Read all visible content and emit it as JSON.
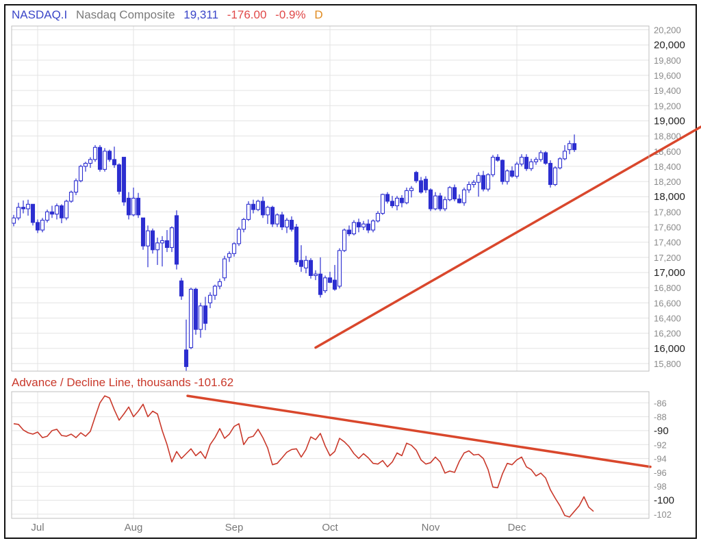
{
  "header": {
    "symbol": "NASDAQ.I",
    "name": "Nasdaq Composite",
    "price": "19,311",
    "change": "-176.00",
    "change_pct": "-0.9%",
    "period": "D"
  },
  "colors": {
    "symbol": "#3a45c8",
    "name": "#7a7a7a",
    "price": "#3a45c8",
    "down": "#e04848",
    "period": "#e08a1e",
    "candle": "#2c2ed0",
    "ad_line": "#c9382a",
    "trendline": "#d9472c",
    "ad_title": "#c9382a"
  },
  "chart_data": [
    {
      "type": "candlestick",
      "title": "NASDAQ.I Nasdaq Composite",
      "ylim": [
        15700,
        20250
      ],
      "yticks": [
        15800,
        16000,
        16200,
        16400,
        16600,
        16800,
        17000,
        17200,
        17400,
        17600,
        17800,
        18000,
        18200,
        18400,
        18600,
        18800,
        19000,
        19200,
        19400,
        19600,
        19800,
        20000,
        20200
      ],
      "ytick_labels": [
        "15,800",
        "16,000",
        "16,200",
        "16,400",
        "16,600",
        "16,800",
        "17,000",
        "17,200",
        "17,400",
        "17,600",
        "17,800",
        "18,000",
        "18,200",
        "18,400",
        "18,600",
        "18,800",
        "19,000",
        "19,200",
        "19,400",
        "19,600",
        "19,800",
        "20,000",
        "20,200"
      ],
      "ytick_major": [
        16000,
        17000,
        18000,
        19000,
        20000
      ],
      "months": [
        "Jul",
        "Aug",
        "Sep",
        "Oct",
        "Nov",
        "Dec"
      ],
      "month_start_index": [
        5,
        25,
        46,
        66,
        87,
        105
      ],
      "candles": [
        {
          "o": 17650,
          "h": 17760,
          "l": 17610,
          "c": 17720
        },
        {
          "o": 17720,
          "h": 17920,
          "l": 17690,
          "c": 17860
        },
        {
          "o": 17860,
          "h": 17950,
          "l": 17780,
          "c": 17840
        },
        {
          "o": 17840,
          "h": 17960,
          "l": 17750,
          "c": 17900
        },
        {
          "o": 17900,
          "h": 17900,
          "l": 17620,
          "c": 17660
        },
        {
          "o": 17660,
          "h": 17700,
          "l": 17520,
          "c": 17560
        },
        {
          "o": 17560,
          "h": 17720,
          "l": 17530,
          "c": 17690
        },
        {
          "o": 17690,
          "h": 17830,
          "l": 17660,
          "c": 17800
        },
        {
          "o": 17800,
          "h": 17880,
          "l": 17720,
          "c": 17770
        },
        {
          "o": 17770,
          "h": 17910,
          "l": 17700,
          "c": 17880
        },
        {
          "o": 17880,
          "h": 17900,
          "l": 17650,
          "c": 17720
        },
        {
          "o": 17720,
          "h": 17960,
          "l": 17690,
          "c": 17940
        },
        {
          "o": 17940,
          "h": 18080,
          "l": 17920,
          "c": 18060
        },
        {
          "o": 18060,
          "h": 18240,
          "l": 18020,
          "c": 18210
        },
        {
          "o": 18210,
          "h": 18420,
          "l": 18190,
          "c": 18400
        },
        {
          "o": 18400,
          "h": 18460,
          "l": 18330,
          "c": 18440
        },
        {
          "o": 18440,
          "h": 18520,
          "l": 18380,
          "c": 18490
        },
        {
          "o": 18490,
          "h": 18680,
          "l": 18460,
          "c": 18650
        },
        {
          "o": 18650,
          "h": 18680,
          "l": 18330,
          "c": 18360
        },
        {
          "o": 18360,
          "h": 18640,
          "l": 18330,
          "c": 18600
        },
        {
          "o": 18600,
          "h": 18620,
          "l": 18460,
          "c": 18490
        },
        {
          "o": 18490,
          "h": 18660,
          "l": 18380,
          "c": 18420
        },
        {
          "o": 18420,
          "h": 18440,
          "l": 18030,
          "c": 18070
        },
        {
          "o": 18520,
          "h": 18520,
          "l": 17880,
          "c": 17930
        },
        {
          "o": 17980,
          "h": 18060,
          "l": 17700,
          "c": 17760
        },
        {
          "o": 17760,
          "h": 18120,
          "l": 17740,
          "c": 17980
        },
        {
          "o": 17980,
          "h": 18050,
          "l": 17720,
          "c": 17760
        },
        {
          "o": 17720,
          "h": 17720,
          "l": 17300,
          "c": 17350
        },
        {
          "o": 17350,
          "h": 17620,
          "l": 17070,
          "c": 17550
        },
        {
          "o": 17550,
          "h": 17580,
          "l": 17250,
          "c": 17300
        },
        {
          "o": 17300,
          "h": 17460,
          "l": 17100,
          "c": 17390
        },
        {
          "o": 17390,
          "h": 17480,
          "l": 17080,
          "c": 17420
        },
        {
          "o": 17420,
          "h": 17560,
          "l": 17270,
          "c": 17330
        },
        {
          "o": 17330,
          "h": 17610,
          "l": 17270,
          "c": 17590
        },
        {
          "o": 17750,
          "h": 17820,
          "l": 17040,
          "c": 17110
        },
        {
          "o": 16890,
          "h": 16930,
          "l": 16640,
          "c": 16690
        },
        {
          "o": 15980,
          "h": 16380,
          "l": 15700,
          "c": 15760
        },
        {
          "o": 16010,
          "h": 16800,
          "l": 15990,
          "c": 16780
        },
        {
          "o": 16780,
          "h": 16800,
          "l": 16180,
          "c": 16250
        },
        {
          "o": 16250,
          "h": 16600,
          "l": 16140,
          "c": 16560
        },
        {
          "o": 16560,
          "h": 16680,
          "l": 16240,
          "c": 16330
        },
        {
          "o": 16600,
          "h": 16740,
          "l": 16530,
          "c": 16700
        },
        {
          "o": 16700,
          "h": 16840,
          "l": 16640,
          "c": 16820
        },
        {
          "o": 16820,
          "h": 16920,
          "l": 16780,
          "c": 16880
        },
        {
          "o": 16930,
          "h": 17220,
          "l": 16890,
          "c": 17180
        },
        {
          "o": 17200,
          "h": 17280,
          "l": 17140,
          "c": 17250
        },
        {
          "o": 17250,
          "h": 17400,
          "l": 17210,
          "c": 17380
        },
        {
          "o": 17380,
          "h": 17600,
          "l": 17350,
          "c": 17570
        },
        {
          "o": 17570,
          "h": 17720,
          "l": 17530,
          "c": 17700
        },
        {
          "o": 17700,
          "h": 17940,
          "l": 17680,
          "c": 17900
        },
        {
          "o": 17900,
          "h": 17960,
          "l": 17780,
          "c": 17830
        },
        {
          "o": 17830,
          "h": 17960,
          "l": 17810,
          "c": 17940
        },
        {
          "o": 17940,
          "h": 18000,
          "l": 17720,
          "c": 17760
        },
        {
          "o": 17760,
          "h": 17880,
          "l": 17640,
          "c": 17860
        },
        {
          "o": 17860,
          "h": 17880,
          "l": 17600,
          "c": 17640
        },
        {
          "o": 17640,
          "h": 17780,
          "l": 17600,
          "c": 17760
        },
        {
          "o": 17760,
          "h": 17800,
          "l": 17560,
          "c": 17600
        },
        {
          "o": 17600,
          "h": 17720,
          "l": 17520,
          "c": 17690
        },
        {
          "o": 17690,
          "h": 17740,
          "l": 17540,
          "c": 17570
        },
        {
          "o": 17600,
          "h": 17640,
          "l": 17100,
          "c": 17140
        },
        {
          "o": 17160,
          "h": 17360,
          "l": 17010,
          "c": 17080
        },
        {
          "o": 17060,
          "h": 17220,
          "l": 16990,
          "c": 17160
        },
        {
          "o": 17160,
          "h": 17190,
          "l": 16920,
          "c": 16960
        },
        {
          "o": 16960,
          "h": 17030,
          "l": 16900,
          "c": 16980
        },
        {
          "o": 16980,
          "h": 17200,
          "l": 16670,
          "c": 16710
        },
        {
          "o": 16760,
          "h": 16960,
          "l": 16730,
          "c": 16930
        },
        {
          "o": 16930,
          "h": 17010,
          "l": 16860,
          "c": 16870
        },
        {
          "o": 16900,
          "h": 17100,
          "l": 16760,
          "c": 16780
        },
        {
          "o": 16820,
          "h": 17320,
          "l": 16790,
          "c": 17290
        },
        {
          "o": 17290,
          "h": 17580,
          "l": 17270,
          "c": 17560
        },
        {
          "o": 17560,
          "h": 17620,
          "l": 17480,
          "c": 17510
        },
        {
          "o": 17510,
          "h": 17690,
          "l": 17490,
          "c": 17660
        },
        {
          "o": 17660,
          "h": 17710,
          "l": 17530,
          "c": 17600
        },
        {
          "o": 17600,
          "h": 17680,
          "l": 17560,
          "c": 17640
        },
        {
          "o": 17640,
          "h": 17700,
          "l": 17520,
          "c": 17560
        },
        {
          "o": 17560,
          "h": 17700,
          "l": 17530,
          "c": 17680
        },
        {
          "o": 17680,
          "h": 17810,
          "l": 17660,
          "c": 17780
        },
        {
          "o": 17780,
          "h": 18040,
          "l": 17760,
          "c": 18030
        },
        {
          "o": 18030,
          "h": 18060,
          "l": 17910,
          "c": 17940
        },
        {
          "o": 17940,
          "h": 18010,
          "l": 17850,
          "c": 17880
        },
        {
          "o": 17880,
          "h": 18010,
          "l": 17820,
          "c": 17980
        },
        {
          "o": 17980,
          "h": 18020,
          "l": 17860,
          "c": 17920
        },
        {
          "o": 17920,
          "h": 18120,
          "l": 17900,
          "c": 18080
        },
        {
          "o": 18080,
          "h": 18140,
          "l": 17990,
          "c": 18110
        },
        {
          "o": 18320,
          "h": 18340,
          "l": 18180,
          "c": 18210
        },
        {
          "o": 18210,
          "h": 18260,
          "l": 18040,
          "c": 18060
        },
        {
          "o": 18230,
          "h": 18270,
          "l": 18050,
          "c": 18090
        },
        {
          "o": 18090,
          "h": 18110,
          "l": 17810,
          "c": 17840
        },
        {
          "o": 17840,
          "h": 18060,
          "l": 17820,
          "c": 18010
        },
        {
          "o": 18010,
          "h": 18050,
          "l": 17810,
          "c": 17840
        },
        {
          "o": 17840,
          "h": 18000,
          "l": 17810,
          "c": 17960
        },
        {
          "o": 17960,
          "h": 18140,
          "l": 17940,
          "c": 18120
        },
        {
          "o": 18120,
          "h": 18160,
          "l": 17940,
          "c": 17970
        },
        {
          "o": 17970,
          "h": 18030,
          "l": 17910,
          "c": 17920
        },
        {
          "o": 17920,
          "h": 18120,
          "l": 17880,
          "c": 18090
        },
        {
          "o": 18090,
          "h": 18200,
          "l": 18050,
          "c": 18160
        },
        {
          "o": 18160,
          "h": 18220,
          "l": 18120,
          "c": 18190
        },
        {
          "o": 18190,
          "h": 18320,
          "l": 18000,
          "c": 18280
        },
        {
          "o": 18280,
          "h": 18340,
          "l": 18070,
          "c": 18100
        },
        {
          "o": 18100,
          "h": 18310,
          "l": 18070,
          "c": 18290
        },
        {
          "o": 18290,
          "h": 18550,
          "l": 18260,
          "c": 18520
        },
        {
          "o": 18520,
          "h": 18560,
          "l": 18460,
          "c": 18480
        },
        {
          "o": 18480,
          "h": 18490,
          "l": 18160,
          "c": 18200
        },
        {
          "o": 18200,
          "h": 18360,
          "l": 18160,
          "c": 18340
        },
        {
          "o": 18340,
          "h": 18400,
          "l": 18250,
          "c": 18270
        },
        {
          "o": 18270,
          "h": 18460,
          "l": 18240,
          "c": 18430
        },
        {
          "o": 18430,
          "h": 18560,
          "l": 18400,
          "c": 18520
        },
        {
          "o": 18520,
          "h": 18560,
          "l": 18340,
          "c": 18370
        },
        {
          "o": 18370,
          "h": 18500,
          "l": 18340,
          "c": 18460
        },
        {
          "o": 18460,
          "h": 18520,
          "l": 18420,
          "c": 18490
        },
        {
          "o": 18490,
          "h": 18610,
          "l": 18460,
          "c": 18580
        },
        {
          "o": 18580,
          "h": 18600,
          "l": 18420,
          "c": 18440
        },
        {
          "o": 18440,
          "h": 18480,
          "l": 18120,
          "c": 18160
        },
        {
          "o": 18160,
          "h": 18400,
          "l": 18140,
          "c": 18380
        },
        {
          "o": 18380,
          "h": 18520,
          "l": 18360,
          "c": 18500
        },
        {
          "o": 18500,
          "h": 18680,
          "l": 18480,
          "c": 18600
        },
        {
          "o": 18620,
          "h": 18740,
          "l": 18560,
          "c": 18700
        },
        {
          "o": 18700,
          "h": 18820,
          "l": 18590,
          "c": 18620
        }
      ],
      "trendline": [
        [
          63,
          16010
        ],
        [
          150,
          19160
        ]
      ]
    },
    {
      "type": "line",
      "title": "Advance / Decline Line, thousands -101.62",
      "ylim": [
        -102.6,
        -84.4
      ],
      "yticks": [
        -86,
        -88,
        -90,
        -92,
        -94,
        -96,
        -98,
        -100,
        -102
      ],
      "ytick_major": [
        -90,
        -100
      ],
      "series": [
        {
          "values": [
            -89.0,
            -89.1,
            -89.9,
            -90.3,
            -90.5,
            -90.2,
            -91.0,
            -90.8,
            -90.0,
            -89.8,
            -90.7,
            -90.8,
            -90.5,
            -91.0,
            -90.3,
            -90.8,
            -90.1,
            -88.0,
            -86.0,
            -85.0,
            -85.3,
            -87.0,
            -88.5,
            -87.6,
            -86.6,
            -88.0,
            -87.2,
            -86.2,
            -88.0,
            -87.2,
            -87.6,
            -90.0,
            -92.0,
            -94.5,
            -93.0,
            -94.0,
            -93.3,
            -92.6,
            -93.6,
            -93.0,
            -94.0,
            -92.0,
            -91.0,
            -89.7,
            -91.1,
            -90.5,
            -89.4,
            -89.0,
            -92.0,
            -91.0,
            -90.8,
            -89.8,
            -91.0,
            -92.5,
            -94.9,
            -94.7,
            -93.9,
            -93.1,
            -92.7,
            -92.6,
            -93.8,
            -92.7,
            -90.9,
            -91.3,
            -90.4,
            -92.2,
            -93.6,
            -93.0,
            -91.1,
            -91.6,
            -92.3,
            -93.3,
            -94.0,
            -93.3,
            -93.9,
            -94.7,
            -94.8,
            -94.3,
            -95.2,
            -94.5,
            -93.2,
            -93.6,
            -91.8,
            -92.1,
            -92.8,
            -94.2,
            -94.8,
            -94.6,
            -93.8,
            -94.5,
            -96.1,
            -95.8,
            -96.0,
            -94.4,
            -93.2,
            -92.9,
            -93.5,
            -93.4,
            -94.0,
            -95.6,
            -98.1,
            -98.2,
            -96.2,
            -94.7,
            -94.9,
            -94.2,
            -93.8,
            -95.2,
            -95.6,
            -96.5,
            -96.1,
            -96.8,
            -98.5,
            -99.7,
            -100.8,
            -102.2,
            -102.4,
            -101.6,
            -100.8,
            -99.5,
            -101.0,
            -101.6
          ]
        }
      ],
      "trendline": [
        [
          22,
          -85.0
        ],
        [
          145,
          -95.2
        ]
      ]
    }
  ]
}
